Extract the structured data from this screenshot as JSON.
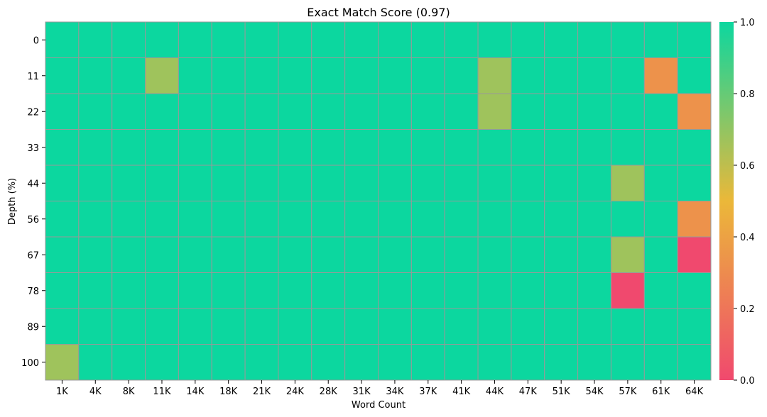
{
  "chart_data": {
    "type": "heatmap",
    "title": "Exact Match Score (0.97)",
    "xlabel": "Word Count",
    "ylabel": "Depth (%)",
    "x_categories": [
      "1K",
      "4K",
      "8K",
      "11K",
      "14K",
      "18K",
      "21K",
      "24K",
      "28K",
      "31K",
      "34K",
      "37K",
      "41K",
      "44K",
      "47K",
      "51K",
      "54K",
      "57K",
      "61K",
      "64K"
    ],
    "y_categories": [
      "0",
      "11",
      "22",
      "33",
      "44",
      "56",
      "67",
      "78",
      "89",
      "100"
    ],
    "values": [
      [
        1,
        1,
        1,
        1,
        1,
        1,
        1,
        1,
        1,
        1,
        1,
        1,
        1,
        1,
        1,
        1,
        1,
        1,
        1,
        1
      ],
      [
        1,
        1,
        1,
        0.67,
        1,
        1,
        1,
        1,
        1,
        1,
        1,
        1,
        1,
        0.67,
        1,
        1,
        1,
        1,
        0.33,
        1
      ],
      [
        1,
        1,
        1,
        1,
        1,
        1,
        1,
        1,
        1,
        1,
        1,
        1,
        1,
        0.67,
        1,
        1,
        1,
        1,
        1,
        0.33
      ],
      [
        1,
        1,
        1,
        1,
        1,
        1,
        1,
        1,
        1,
        1,
        1,
        1,
        1,
        1,
        1,
        1,
        1,
        1,
        1,
        1
      ],
      [
        1,
        1,
        1,
        1,
        1,
        1,
        1,
        1,
        1,
        1,
        1,
        1,
        1,
        1,
        1,
        1,
        1,
        0.67,
        1,
        1
      ],
      [
        1,
        1,
        1,
        1,
        1,
        1,
        1,
        1,
        1,
        1,
        1,
        1,
        1,
        1,
        1,
        1,
        1,
        1,
        1,
        0.33
      ],
      [
        1,
        1,
        1,
        1,
        1,
        1,
        1,
        1,
        1,
        1,
        1,
        1,
        1,
        1,
        1,
        1,
        1,
        0.67,
        1,
        0
      ],
      [
        1,
        1,
        1,
        1,
        1,
        1,
        1,
        1,
        1,
        1,
        1,
        1,
        1,
        1,
        1,
        1,
        1,
        0,
        1,
        1
      ],
      [
        1,
        1,
        1,
        1,
        1,
        1,
        1,
        1,
        1,
        1,
        1,
        1,
        1,
        1,
        1,
        1,
        1,
        1,
        1,
        1
      ],
      [
        0.67,
        1,
        1,
        1,
        1,
        1,
        1,
        1,
        1,
        1,
        1,
        1,
        1,
        1,
        1,
        1,
        1,
        1,
        1,
        1
      ]
    ],
    "colorbar": {
      "range": [
        0,
        1
      ],
      "ticks": [
        "0.0",
        "0.2",
        "0.4",
        "0.6",
        "0.8",
        "1.0"
      ],
      "colors": [
        "#F0496E",
        "#EBB839",
        "#0CD79F"
      ]
    },
    "grid_color": "#999999"
  }
}
